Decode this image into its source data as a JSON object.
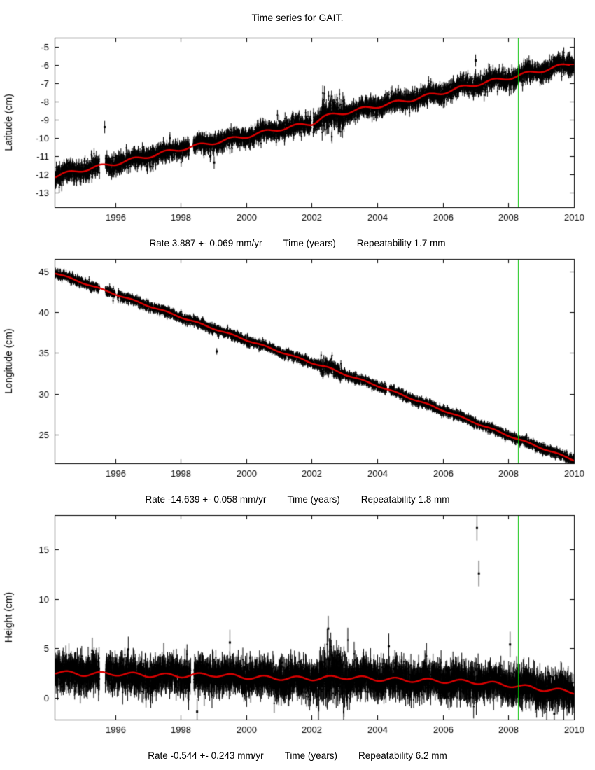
{
  "page": {
    "title": "Time series for GAIT."
  },
  "chart_data": [
    {
      "type": "scatter",
      "name": "latitude",
      "ylabel": "Latitude (cm)",
      "xlabel": "Time (years)",
      "caption": {
        "rate": "Rate 3.887 +- 0.069 mm/yr",
        "xlabel": "Time (years)",
        "repeatability": "Repeatability 1.7 mm"
      },
      "x_range": [
        1994.15,
        2010
      ],
      "y_range": [
        -13.8,
        -4.5
      ],
      "x_ticks": [
        1996,
        1998,
        2000,
        2002,
        2004,
        2006,
        2008,
        2010
      ],
      "y_ticks": [
        -13,
        -12,
        -11,
        -10,
        -9,
        -8,
        -7,
        -6,
        -5
      ],
      "trend_points": [
        [
          1994.15,
          -12.1
        ],
        [
          1995,
          -11.75
        ],
        [
          1996,
          -11.4
        ],
        [
          1997,
          -11.0
        ],
        [
          1998,
          -10.6
        ],
        [
          1999,
          -10.25
        ],
        [
          2000,
          -9.9
        ],
        [
          2001,
          -9.5
        ],
        [
          2002,
          -9.2
        ],
        [
          2002.35,
          -8.85
        ],
        [
          2002.6,
          -8.75
        ],
        [
          2003,
          -8.6
        ],
        [
          2004,
          -8.25
        ],
        [
          2005,
          -7.9
        ],
        [
          2006,
          -7.5
        ],
        [
          2007,
          -7.05
        ],
        [
          2008,
          -6.7
        ],
        [
          2009,
          -6.3
        ],
        [
          2010,
          -5.9
        ]
      ],
      "seasonal_amp": 0.1,
      "noise_sd": 0.22,
      "error_bar": 0.26,
      "noisy_period": {
        "range": [
          2002.28,
          2003.0
        ],
        "multiplier": 2.0
      },
      "gaps": [
        [
          1995.52,
          1995.7
        ],
        [
          1998.26,
          1998.38
        ],
        [
          2001.98,
          2002.04
        ]
      ],
      "outliers": [
        [
          1995.68,
          -9.4
        ],
        [
          1998.9,
          -11.0
        ],
        [
          1999.02,
          -11.35
        ],
        [
          2007.0,
          -5.75
        ]
      ],
      "sample_step": 0.004,
      "seed": 11,
      "marker_color": "#000000",
      "trend_color": "#dd0000",
      "event_line": {
        "x": 2008.3,
        "color": "#00c000"
      }
    },
    {
      "type": "scatter",
      "name": "longitude",
      "ylabel": "Longitude (cm)",
      "xlabel": "Time (years)",
      "caption": {
        "rate": "Rate -14.639 +- 0.058 mm/yr",
        "xlabel": "Time (years)",
        "repeatability": "Repeatability 1.8 mm"
      },
      "x_range": [
        1994.15,
        2010
      ],
      "y_range": [
        21.5,
        46.5
      ],
      "x_ticks": [
        1996,
        1998,
        2000,
        2002,
        2004,
        2006,
        2008,
        2010
      ],
      "y_ticks": [
        25,
        30,
        35,
        40,
        45
      ],
      "trend_points": [
        [
          1994.15,
          44.8
        ],
        [
          1996,
          42.2
        ],
        [
          1998,
          39.4
        ],
        [
          2000,
          36.6
        ],
        [
          2002,
          33.8
        ],
        [
          2002.5,
          33.2
        ],
        [
          2003,
          32.4
        ],
        [
          2004,
          31.0
        ],
        [
          2006,
          28.0
        ],
        [
          2008,
          24.9
        ],
        [
          2010,
          21.9
        ]
      ],
      "seasonal_amp": 0.08,
      "noise_sd": 0.25,
      "error_bar": 0.3,
      "noisy_period": {
        "range": [
          2002.25,
          2002.9
        ],
        "multiplier": 2.0
      },
      "gaps": [
        [
          1995.52,
          1995.7
        ],
        [
          1996.0,
          1996.07
        ],
        [
          2004.28,
          2004.36
        ]
      ],
      "outliers": [
        [
          1999.1,
          35.2
        ]
      ],
      "sample_step": 0.004,
      "seed": 22,
      "marker_color": "#000000",
      "trend_color": "#dd0000",
      "event_line": {
        "x": 2008.3,
        "color": "#00c000"
      }
    },
    {
      "type": "scatter",
      "name": "height",
      "ylabel": "Height (cm)",
      "xlabel": "Time (years)",
      "caption": {
        "rate": "Rate -0.544 +- 0.243 mm/yr",
        "xlabel": "Time (years)",
        "repeatability": "Repeatability 6.2 mm"
      },
      "x_range": [
        1994.15,
        2010
      ],
      "y_range": [
        -2.2,
        18.5
      ],
      "x_ticks": [
        1996,
        1998,
        2000,
        2002,
        2004,
        2006,
        2008,
        2010
      ],
      "y_ticks": [
        0,
        5,
        10,
        15
      ],
      "trend_points": [
        [
          1994.15,
          2.6
        ],
        [
          1995,
          2.4
        ],
        [
          1996,
          2.45
        ],
        [
          1997,
          2.3
        ],
        [
          1998,
          2.25
        ],
        [
          1999,
          2.35
        ],
        [
          2000,
          2.1
        ],
        [
          2001,
          2.0
        ],
        [
          2002,
          1.95
        ],
        [
          2003,
          2.1
        ],
        [
          2004,
          1.9
        ],
        [
          2005,
          1.8
        ],
        [
          2006,
          1.7
        ],
        [
          2007,
          1.6
        ],
        [
          2008,
          1.3
        ],
        [
          2009,
          0.9
        ],
        [
          2010,
          0.6
        ]
      ],
      "seasonal_amp": 0.2,
      "noise_sd": 0.7,
      "error_bar": 1.0,
      "noisy_period": {
        "range": [
          2002.2,
          2003.1
        ],
        "multiplier": 1.6
      },
      "gaps": [
        [
          1995.52,
          1995.7
        ],
        [
          1998.3,
          1998.4
        ]
      ],
      "outliers": [
        [
          1995.3,
          4.8
        ],
        [
          1996.4,
          4.9
        ],
        [
          1998.5,
          -1.4
        ],
        [
          1999.5,
          5.6
        ],
        [
          2002.5,
          7.0
        ],
        [
          2004.35,
          5.2
        ],
        [
          2007.04,
          17.2
        ],
        [
          2007.1,
          12.6
        ],
        [
          2008.05,
          5.4
        ],
        [
          2009.4,
          -1.6
        ]
      ],
      "sample_step": 0.004,
      "seed": 33,
      "marker_color": "#000000",
      "trend_color": "#dd0000",
      "event_line": {
        "x": 2008.3,
        "color": "#00c000"
      }
    }
  ]
}
